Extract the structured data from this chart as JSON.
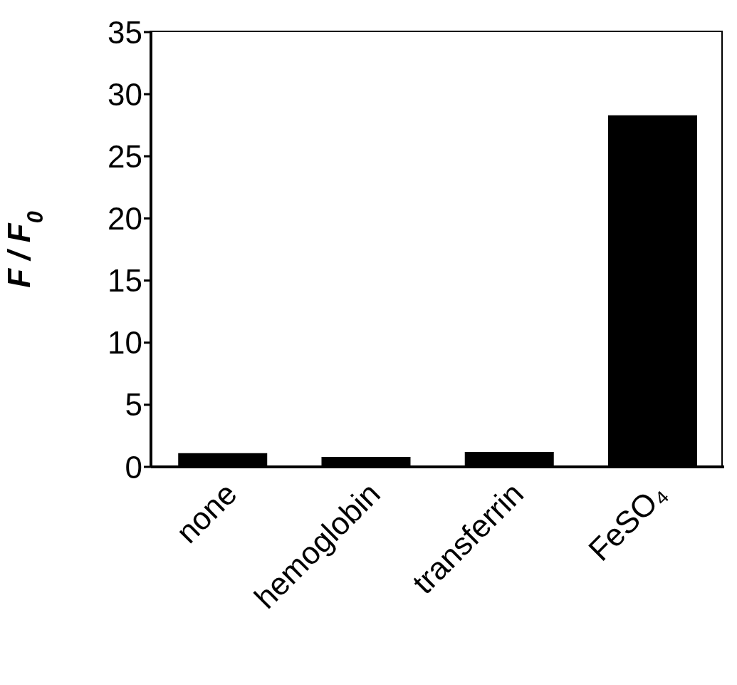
{
  "chart_data": {
    "type": "bar",
    "ylabel": "F / F$_{0}$",
    "categories": [
      "none",
      "hemoglobin",
      "transferrin",
      "FeSO₄"
    ],
    "values": [
      1.1,
      0.8,
      1.2,
      28.3
    ],
    "color": "#000000",
    "ylim": [
      0,
      35
    ],
    "yticks": [
      0,
      5,
      10,
      15,
      20,
      25,
      30,
      35
    ],
    "grid": false
  }
}
